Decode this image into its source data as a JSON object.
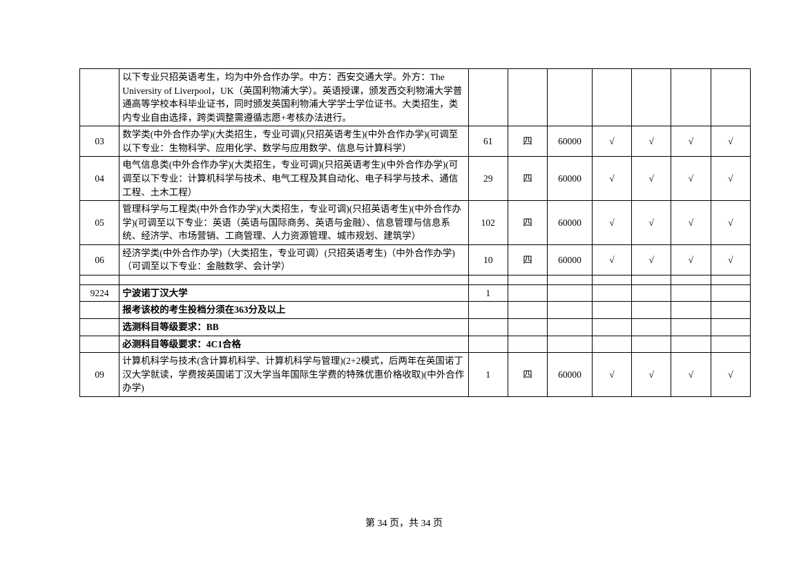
{
  "table": {
    "rows": [
      {
        "code": "",
        "desc": "以下专业只招英语考生，均为中外合作办学。中方：西安交通大学。外方：The University of Liverpool，UK（英国利物浦大学）。英语授课，颁发西交利物浦大学普通高等学校本科毕业证书，同时颁发英国利物浦大学学士学位证书。大类招生，类内专业自由选择，跨类调整需遵循志愿+考核办法进行。",
        "n1": "",
        "n2": "",
        "fee": "",
        "c1": "",
        "c2": "",
        "c3": "",
        "c4": ""
      },
      {
        "code": "03",
        "desc": "数学类(中外合作办学)(大类招生，专业可调)(只招英语考生)(中外合作办学)(可调至以下专业：生物科学、应用化学、数学与应用数学、信息与计算科学）",
        "n1": "61",
        "n2": "四",
        "fee": "60000",
        "c1": "√",
        "c2": "√",
        "c3": "√",
        "c4": "√"
      },
      {
        "code": "04",
        "desc": "电气信息类(中外合作办学)(大类招生，专业可调)(只招英语考生)(中外合作办学)(可调至以下专业：计算机科学与技术、电气工程及其自动化、电子科学与技术、通信工程、土木工程）",
        "n1": "29",
        "n2": "四",
        "fee": "60000",
        "c1": "√",
        "c2": "√",
        "c3": "√",
        "c4": "√"
      },
      {
        "code": "05",
        "desc": "管理科学与工程类(中外合作办学)(大类招生，专业可调)(只招英语考生)(中外合作办学)(可调至以下专业：英语（英语与国际商务、英语与金融）、信息管理与信息系统、经济学、市场营销、工商管理、人力资源管理、城市规划、建筑学）",
        "n1": "102",
        "n2": "四",
        "fee": "60000",
        "c1": "√",
        "c2": "√",
        "c3": "√",
        "c4": "√"
      },
      {
        "code": "06",
        "desc": "经济学类(中外合作办学)（大类招生，专业可调）(只招英语考生)（中外合作办学)（可调至以下专业：金融数学、会计学）",
        "n1": "10",
        "n2": "四",
        "fee": "60000",
        "c1": "√",
        "c2": "√",
        "c3": "√",
        "c4": "√"
      },
      {
        "spacer": true
      },
      {
        "code": "9224",
        "desc_html": "<b>宁波诺丁汉大学</b>",
        "n1": "1",
        "n2": "",
        "fee": "",
        "c1": "",
        "c2": "",
        "c3": "",
        "c4": ""
      },
      {
        "code": "",
        "desc_html": "<b>报考该校的考生投档分须在363分及以上</b>",
        "n1": "",
        "n2": "",
        "fee": "",
        "c1": "",
        "c2": "",
        "c3": "",
        "c4": ""
      },
      {
        "code": "",
        "desc_html": "<b>选测科目等级要求：BB</b>",
        "n1": "",
        "n2": "",
        "fee": "",
        "c1": "",
        "c2": "",
        "c3": "",
        "c4": ""
      },
      {
        "code": "",
        "desc_html": "<b>必测科目等级要求：4C1合格</b>",
        "n1": "",
        "n2": "",
        "fee": "",
        "c1": "",
        "c2": "",
        "c3": "",
        "c4": ""
      },
      {
        "code": "09",
        "desc": "计算机科学与技术(含计算机科学、计算机科学与管理)(2+2模式，后两年在英国诺丁汉大学就读，学费按英国诺丁汉大学当年国际生学费的特殊优惠价格收取)(中外合作办学)",
        "n1": "1",
        "n2": "四",
        "fee": "60000",
        "c1": "√",
        "c2": "√",
        "c3": "√",
        "c4": "√"
      }
    ]
  },
  "footer": "第 34 页，共 34 页"
}
